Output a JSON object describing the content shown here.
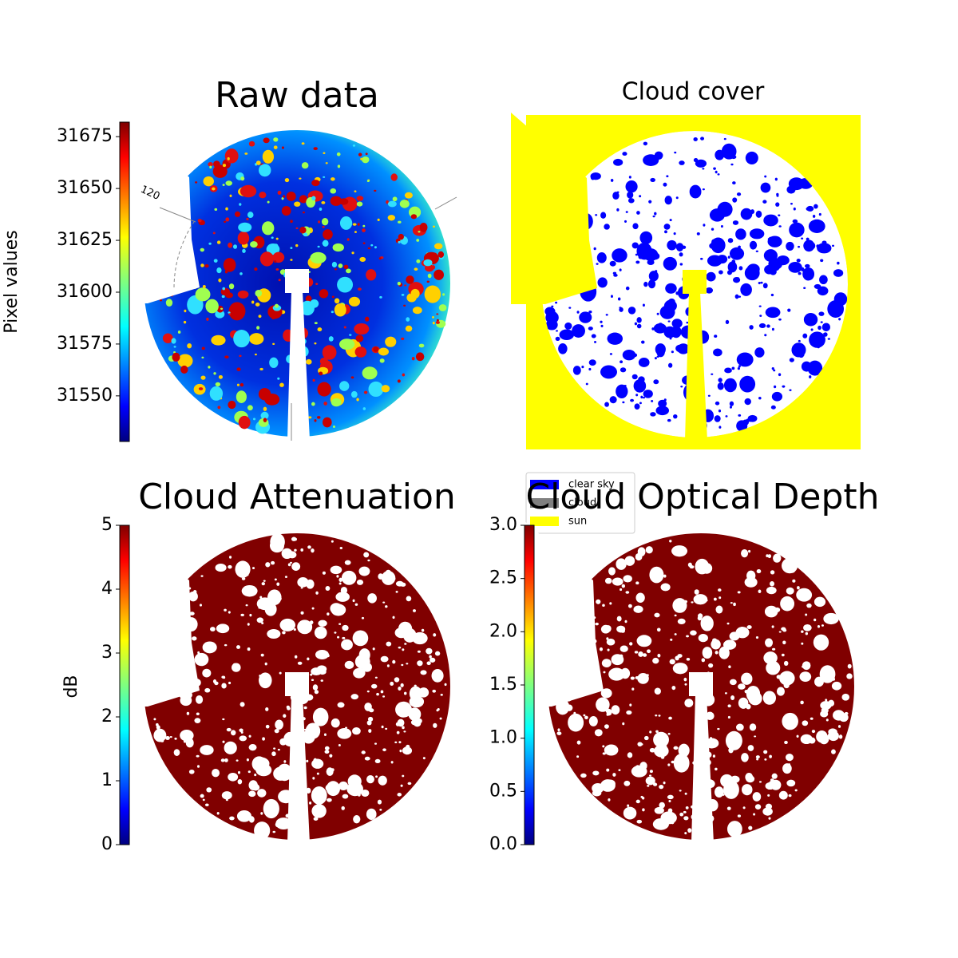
{
  "chart_data": [
    {
      "type": "image",
      "title": "Raw data",
      "ylabel": "Pixel values",
      "colormap": "jet",
      "ylim": [
        31528,
        31682
      ],
      "yticks": [
        31550,
        31575,
        31600,
        31625,
        31650,
        31675
      ],
      "annotations": [
        "120"
      ]
    },
    {
      "type": "image",
      "title": "Cloud cover",
      "series": [
        {
          "name": "clear sky",
          "color": "#0000ff"
        },
        {
          "name": "cloud",
          "color": "#808080"
        },
        {
          "name": "sun",
          "color": "#ffff00"
        }
      ]
    },
    {
      "type": "image",
      "title": "Cloud Attenuation",
      "ylabel": "dB",
      "colormap": "jet",
      "ylim": [
        0,
        5
      ],
      "yticks": [
        0,
        1,
        2,
        3,
        4,
        5
      ]
    },
    {
      "type": "image",
      "title": "Cloud Optical Depth",
      "colormap": "jet",
      "ylim": [
        0,
        3
      ],
      "yticks": [
        {
          "value": 0,
          "label": "0.0"
        },
        0.5,
        {
          "value": 1,
          "label": "1.0"
        },
        1.5,
        {
          "value": 2,
          "label": "2.0"
        },
        2.5,
        {
          "value": 3,
          "label": "3.0"
        }
      ]
    }
  ]
}
